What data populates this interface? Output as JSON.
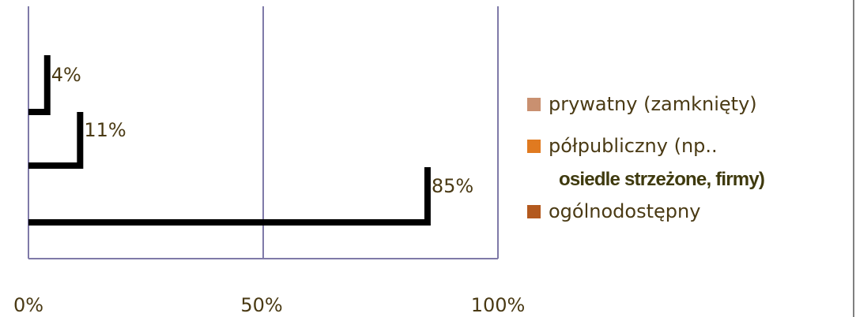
{
  "chart_data": {
    "type": "bar",
    "orientation": "horizontal",
    "categories": [
      "prywatny (zamknięty)",
      "półpubliczny (np.. osiedle strzeżone, firmy)",
      "ogólnodostępny"
    ],
    "values": [
      4,
      11,
      85
    ],
    "value_labels": [
      "4%",
      "11%",
      "85%"
    ],
    "xlim": [
      0,
      100
    ],
    "x_ticks": [
      "0%",
      "50%",
      "100%"
    ],
    "grid": true,
    "legend_position": "right"
  },
  "colors": {
    "axis": "#7f7aa8",
    "bar_outline": "#000000",
    "label_text": "#4a3a14",
    "series": [
      "#c99070",
      "#e07a20",
      "#b3591e"
    ]
  },
  "legend": {
    "items": [
      {
        "label": "prywatny (zamknięty)",
        "color": "#c99070"
      },
      {
        "label": "półpubliczny (np..",
        "color": "#e07a20"
      },
      {
        "label": "ogólnodostępny",
        "color": "#b3591e"
      }
    ],
    "extra_line": "osiedle strzeżone, firmy)"
  }
}
